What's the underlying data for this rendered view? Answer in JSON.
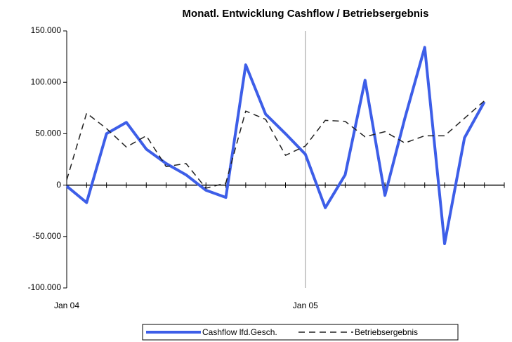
{
  "chart_data": {
    "type": "line",
    "title": "Monatl. Entwicklung Cashflow / Betriebsergebnis",
    "categories": [
      "Jan 04",
      null,
      null,
      null,
      null,
      null,
      null,
      null,
      null,
      null,
      null,
      null,
      "Jan 05",
      null,
      null,
      null,
      null,
      null,
      null,
      null,
      null,
      null
    ],
    "series": [
      {
        "name": "Cashflow lfd.Gesch.",
        "color": "#3d5ee8",
        "values": [
          -1000,
          -17000,
          50000,
          61000,
          35000,
          21000,
          10000,
          -5000,
          -12000,
          117000,
          69000,
          50000,
          30000,
          -22000,
          10000,
          102000,
          -10000,
          65000,
          134000,
          -57000,
          46000,
          81000
        ]
      },
      {
        "name": "Betriebsergebnis",
        "color": "#222222",
        "values": [
          5000,
          70000,
          55000,
          37000,
          48000,
          18000,
          21000,
          -3000,
          2000,
          72000,
          64000,
          29000,
          38000,
          63000,
          62000,
          47000,
          52000,
          41000,
          48000,
          48000,
          65000,
          82000
        ]
      }
    ],
    "ylim": [
      -100000,
      150000
    ],
    "yticks": [
      {
        "value": -100000,
        "label": "-100.000"
      },
      {
        "value": -50000,
        "label": "-50.000"
      },
      0,
      {
        "value": 50000,
        "label": "50.000"
      },
      {
        "value": 100000,
        "label": "100.000"
      },
      {
        "value": 150000,
        "label": "150.000"
      }
    ],
    "legend": "bottom"
  }
}
